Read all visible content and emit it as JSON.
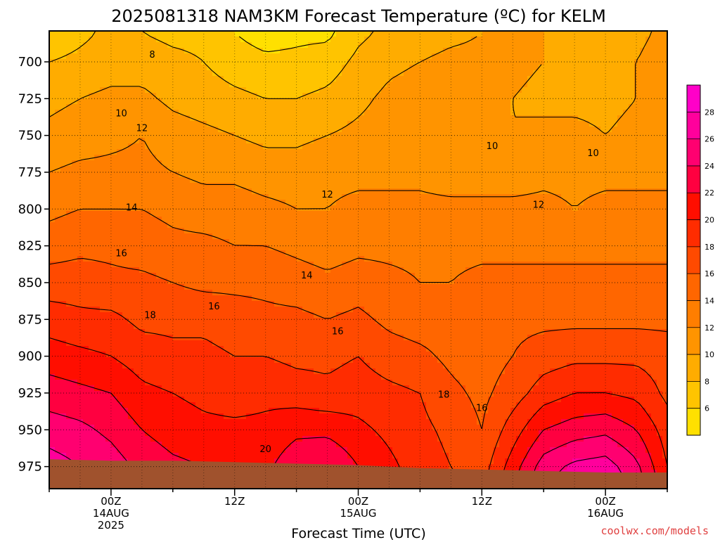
{
  "chart_data": {
    "type": "heatmap",
    "title": "2025081318 NAM3KM Forecast Temperature (ºC) for KELM",
    "xlabel": "Forecast Time (UTC)",
    "ylabel": "",
    "y_ticks": [
      "700",
      "725",
      "750",
      "775",
      "800",
      "825",
      "850",
      "875",
      "900",
      "925",
      "950",
      "975"
    ],
    "x_ticks": [
      {
        "hour": 6,
        "lines": [
          "00Z",
          "14AUG",
          "2025"
        ]
      },
      {
        "hour": 18,
        "lines": [
          "12Z"
        ]
      },
      {
        "hour": 30,
        "lines": [
          "00Z",
          "15AUG"
        ]
      },
      {
        "hour": 42,
        "lines": [
          "12Z"
        ]
      },
      {
        "hour": 54,
        "lines": [
          "00Z",
          "16AUG"
        ]
      }
    ],
    "xlim_hours": [
      0,
      60
    ],
    "ylim_hPa": [
      679,
      990
    ],
    "grid": true,
    "colorbar": {
      "levels": [
        4,
        6,
        8,
        10,
        12,
        14,
        16,
        18,
        20,
        22,
        24,
        26,
        28,
        30
      ],
      "tick_labels": [
        "6",
        "8",
        "10",
        "12",
        "14",
        "16",
        "18",
        "20",
        "22",
        "24",
        "26",
        "28"
      ],
      "colors": [
        "#ffe000",
        "#ffc400",
        "#ffac00",
        "#ff9400",
        "#ff7e00",
        "#ff6600",
        "#ff4a00",
        "#ff2c00",
        "#ff0e00",
        "#ff0040",
        "#ff0070",
        "#ff009c",
        "#ff00c8"
      ]
    },
    "isotherm_labels": [
      {
        "text": "8",
        "hour": 10.0,
        "p": 695
      },
      {
        "text": "10",
        "hour": 7.0,
        "p": 735
      },
      {
        "text": "12",
        "hour": 9.0,
        "p": 745
      },
      {
        "text": "14",
        "hour": 8.0,
        "p": 799
      },
      {
        "text": "16",
        "hour": 7.0,
        "p": 830
      },
      {
        "text": "18",
        "hour": 9.8,
        "p": 872
      },
      {
        "text": "16",
        "hour": 16.0,
        "p": 866
      },
      {
        "text": "14",
        "hour": 25.0,
        "p": 845
      },
      {
        "text": "12",
        "hour": 27.0,
        "p": 790
      },
      {
        "text": "16",
        "hour": 28.0,
        "p": 883
      },
      {
        "text": "20",
        "hour": 21.0,
        "p": 963
      },
      {
        "text": "18",
        "hour": 38.3,
        "p": 926
      },
      {
        "text": "16",
        "hour": 42.0,
        "p": 935
      },
      {
        "text": "10",
        "hour": 43.0,
        "p": 757
      },
      {
        "text": "12",
        "hour": 47.5,
        "p": 797
      },
      {
        "text": "10",
        "hour": 52.8,
        "p": 762
      }
    ],
    "temperature_field": {
      "hours": [
        0,
        3,
        6,
        9,
        12,
        15,
        18,
        21,
        24,
        27,
        30,
        33,
        36,
        39,
        42,
        45,
        48,
        51,
        54,
        57,
        60
      ],
      "levels_hPa": [
        680,
        700,
        725,
        750,
        775,
        800,
        825,
        850,
        875,
        900,
        925,
        950,
        975,
        990
      ],
      "temps_C": [
        [
          6.5,
          7.5,
          8.5,
          8.0,
          7.5,
          7.5,
          6.0,
          5.0,
          5.5,
          5.5,
          7.5,
          8.5,
          9.0,
          9.5,
          10.0,
          10.5,
          10.0,
          9.0,
          9.0,
          9.5,
          10.5
        ],
        [
          8.0,
          8.5,
          9.0,
          9.0,
          8.5,
          8.0,
          7.0,
          6.5,
          6.5,
          7.0,
          8.5,
          9.5,
          10.0,
          10.5,
          10.5,
          10.5,
          10.0,
          9.5,
          9.5,
          10.0,
          11.0
        ],
        [
          9.5,
          10.0,
          10.5,
          10.5,
          9.5,
          9.0,
          8.5,
          8.0,
          8.0,
          8.5,
          9.5,
          10.5,
          11.0,
          11.0,
          10.5,
          10.0,
          9.5,
          9.5,
          9.5,
          10.0,
          11.0
        ],
        [
          10.5,
          11.0,
          11.5,
          12.0,
          11.0,
          10.5,
          10.0,
          9.5,
          9.5,
          10.0,
          10.5,
          11.0,
          11.0,
          10.5,
          10.0,
          10.0,
          10.5,
          10.5,
          10.0,
          10.5,
          11.0
        ],
        [
          12.0,
          12.5,
          12.5,
          12.5,
          12.0,
          11.5,
          11.5,
          11.0,
          11.0,
          11.5,
          11.5,
          11.5,
          11.5,
          11.0,
          11.0,
          11.0,
          11.5,
          11.5,
          11.5,
          11.5,
          11.5
        ],
        [
          13.5,
          14.0,
          14.0,
          14.0,
          13.5,
          13.0,
          13.0,
          12.5,
          12.0,
          12.0,
          12.5,
          12.5,
          12.5,
          12.5,
          12.5,
          12.5,
          12.5,
          12.0,
          12.5,
          12.5,
          12.5
        ],
        [
          15.0,
          15.5,
          15.5,
          15.0,
          14.5,
          14.5,
          14.0,
          14.0,
          13.5,
          13.0,
          13.5,
          13.5,
          13.5,
          13.5,
          13.5,
          13.5,
          13.5,
          13.5,
          13.5,
          13.5,
          13.5
        ],
        [
          17.0,
          17.0,
          16.5,
          16.5,
          16.0,
          15.5,
          15.5,
          15.5,
          15.0,
          14.5,
          15.0,
          14.5,
          14.0,
          14.0,
          14.5,
          14.5,
          14.5,
          14.5,
          14.5,
          14.5,
          14.5
        ],
        [
          19.0,
          18.5,
          18.5,
          17.5,
          17.5,
          17.5,
          17.0,
          16.5,
          16.5,
          16.0,
          16.5,
          15.5,
          15.0,
          15.0,
          15.5,
          15.5,
          15.5,
          15.5,
          15.5,
          15.5,
          15.5
        ],
        [
          21.0,
          20.5,
          20.0,
          19.0,
          18.5,
          18.5,
          18.0,
          18.0,
          17.5,
          17.5,
          18.0,
          17.0,
          16.5,
          15.5,
          15.0,
          16.0,
          17.0,
          17.5,
          17.5,
          17.5,
          17.0
        ],
        [
          23.0,
          22.5,
          22.0,
          20.5,
          20.0,
          19.5,
          19.0,
          19.5,
          19.0,
          18.5,
          19.0,
          18.5,
          18.0,
          16.5,
          15.5,
          17.0,
          19.0,
          20.0,
          20.0,
          19.5,
          17.5
        ],
        [
          25.0,
          24.5,
          23.5,
          22.0,
          21.0,
          20.5,
          20.5,
          20.5,
          21.5,
          21.5,
          20.5,
          19.5,
          18.5,
          17.5,
          16.0,
          19.0,
          22.0,
          23.0,
          23.5,
          22.0,
          19.0
        ],
        [
          27.0,
          26.0,
          25.0,
          23.5,
          22.5,
          22.0,
          21.0,
          21.5,
          23.5,
          24.0,
          22.0,
          20.5,
          19.0,
          18.0,
          17.0,
          21.0,
          25.0,
          26.5,
          27.0,
          24.5,
          20.0
        ],
        [
          28.0,
          27.0,
          26.0,
          24.5,
          23.5,
          23.0,
          22.0,
          22.5,
          24.5,
          25.0,
          23.0,
          21.0,
          19.5,
          18.5,
          17.5,
          22.0,
          26.0,
          27.5,
          28.0,
          25.5,
          20.5
        ]
      ]
    },
    "surface_pressure": {
      "hours": [
        0,
        6,
        12,
        18,
        24,
        30,
        36,
        42,
        48,
        54,
        60
      ],
      "p_hPa": [
        970,
        971,
        971,
        972,
        973,
        974,
        976,
        977,
        978,
        979,
        979
      ]
    },
    "colors": {
      "ground": "#a0522d",
      "credit": "#e04040"
    }
  },
  "credit": "coolwx.com/models"
}
